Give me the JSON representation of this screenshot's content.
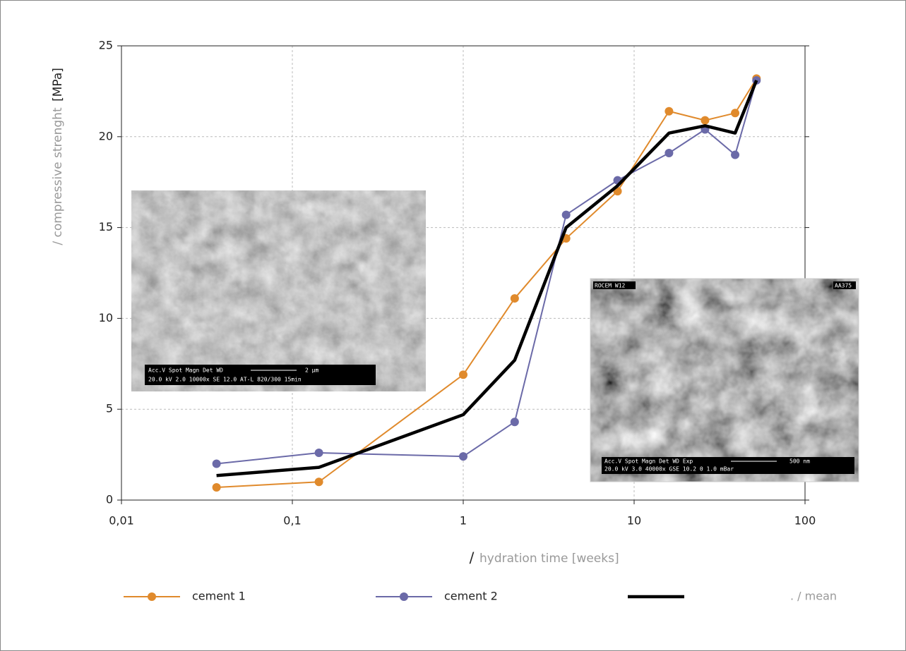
{
  "chart_data": {
    "type": "line",
    "ylabel": "/ compressive strenght",
    "ylabel_unit": "[MPa]",
    "xlabel": {
      "slash": "/",
      "text": "hydration time [weeks]"
    },
    "x": [
      0.036,
      0.143,
      1,
      2,
      4,
      8,
      16,
      26,
      39,
      52
    ],
    "series": [
      {
        "name": "cement 1",
        "color": "#e08a2c",
        "markers": true,
        "values": [
          0.7,
          1.0,
          6.9,
          11.1,
          14.4,
          17.0,
          21.4,
          20.9,
          21.3,
          23.2
        ]
      },
      {
        "name": "cement 2",
        "color": "#6b6aa8",
        "markers": true,
        "values": [
          2.0,
          2.6,
          2.4,
          4.3,
          15.7,
          17.6,
          19.1,
          20.4,
          19.0,
          23.1
        ]
      },
      {
        "name": ". / mean",
        "color": "#000000",
        "markers": false,
        "values": [
          1.35,
          1.8,
          4.7,
          7.7,
          15.0,
          17.3,
          20.2,
          20.6,
          20.2,
          23.1
        ]
      }
    ],
    "xscale": "log",
    "xlim": [
      0.01,
      100
    ],
    "xticks": [
      {
        "value": 0.01,
        "label": "0,01"
      },
      {
        "value": 0.1,
        "label": "0,1"
      },
      1,
      10,
      100
    ],
    "ylim": [
      0,
      25
    ],
    "yticks": [
      0,
      5,
      10,
      15,
      20,
      25
    ],
    "grid": true,
    "legend": "bottom",
    "insets": [
      {
        "caption_1": "Acc.V  Spot Magn    Det  WD",
        "scale": "2 µm",
        "caption_2": "20.0 kV 2.0   10000x  SE   12.0  AT-L 820/300 15min"
      },
      {
        "top_left": "ROCEM W12",
        "top_right": "AA375",
        "caption_1": "Acc.V   Spot Magn    Det  WD  Exp",
        "scale": "500 nm",
        "caption_2": "20.0 kV 3.0   40000x  GSE 10.2  0       1.0 mBar"
      }
    ]
  }
}
